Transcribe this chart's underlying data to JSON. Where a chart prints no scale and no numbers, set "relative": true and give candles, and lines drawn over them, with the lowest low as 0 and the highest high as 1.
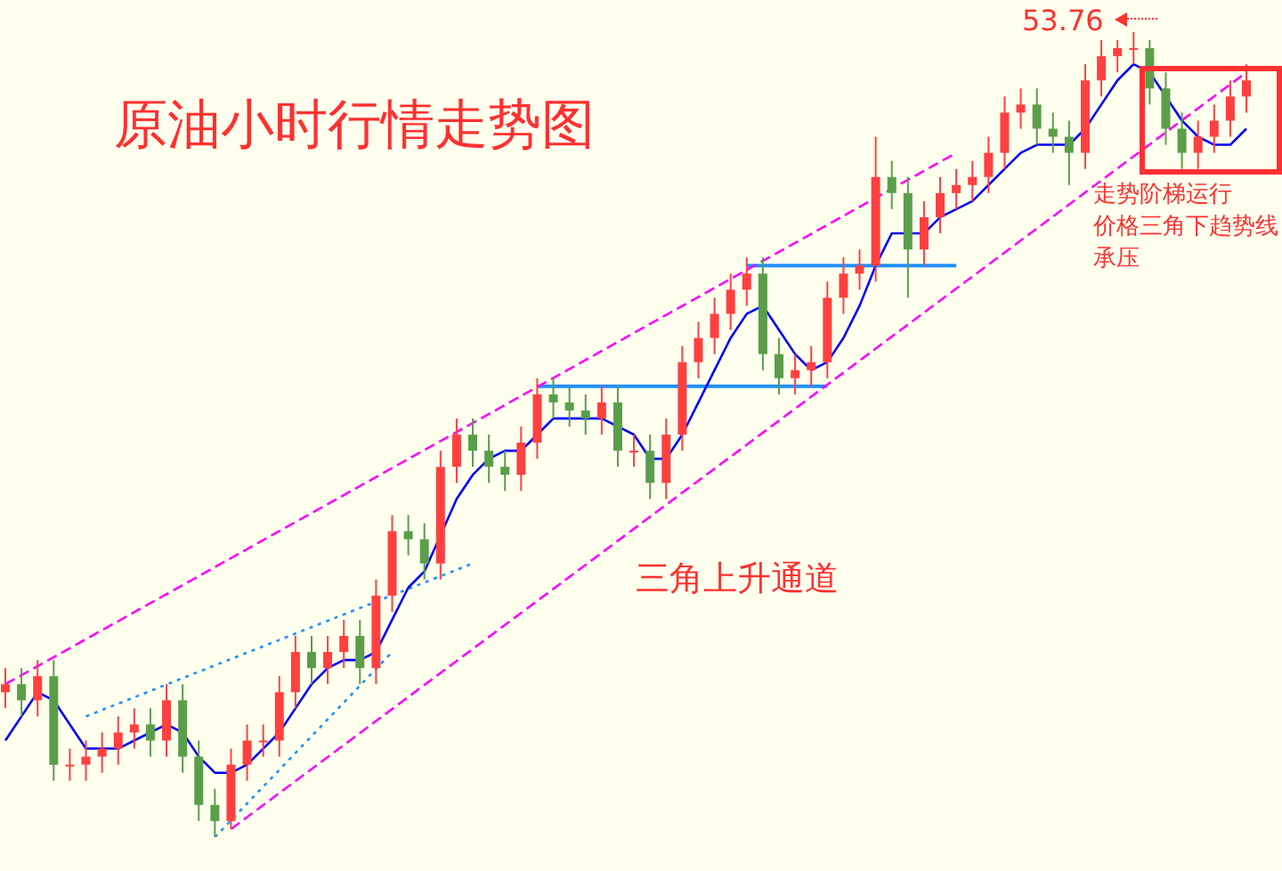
{
  "chart_data": {
    "type": "candlestick",
    "title": "原油小时行情走势图",
    "annotations": [
      "53.76",
      "走势阶梯运行",
      "价格三角下趋势线",
      "承压",
      "三角上升通道"
    ],
    "relative": true,
    "marker": "none",
    "categories": [
      null,
      null,
      null,
      null,
      null,
      null,
      null,
      null,
      null,
      null,
      null,
      null,
      null,
      null,
      null,
      null,
      null,
      null,
      null,
      null,
      null,
      null,
      null,
      null,
      null,
      null,
      null,
      null,
      null,
      null,
      null,
      null,
      null,
      null,
      null,
      null,
      null,
      null,
      null,
      null,
      null,
      null,
      null,
      null,
      null,
      null,
      null,
      null,
      null,
      null,
      null,
      null,
      null,
      null,
      null,
      null,
      null,
      null,
      null,
      null,
      null,
      null,
      null,
      null,
      null,
      null,
      null,
      null,
      null,
      null,
      null,
      null,
      null,
      null,
      null,
      null,
      null,
      null
    ],
    "ohlc": [
      [
        0.18,
        0.21,
        0.16,
        0.19
      ],
      [
        0.19,
        0.21,
        0.15,
        0.17
      ],
      [
        0.17,
        0.22,
        0.15,
        0.2
      ],
      [
        0.2,
        0.22,
        0.07,
        0.09
      ],
      [
        0.09,
        0.11,
        0.07,
        0.09
      ],
      [
        0.09,
        0.12,
        0.07,
        0.1
      ],
      [
        0.1,
        0.13,
        0.08,
        0.11
      ],
      [
        0.11,
        0.15,
        0.09,
        0.13
      ],
      [
        0.13,
        0.16,
        0.11,
        0.14
      ],
      [
        0.14,
        0.16,
        0.1,
        0.12
      ],
      [
        0.12,
        0.19,
        0.1,
        0.17
      ],
      [
        0.17,
        0.19,
        0.08,
        0.1
      ],
      [
        0.1,
        0.12,
        0.02,
        0.04
      ],
      [
        0.04,
        0.06,
        0,
        0.02
      ],
      [
        0.02,
        0.11,
        0.01,
        0.09
      ],
      [
        0.09,
        0.14,
        0.07,
        0.12
      ],
      [
        0.12,
        0.14,
        0.1,
        0.12
      ],
      [
        0.12,
        0.2,
        0.1,
        0.18
      ],
      [
        0.18,
        0.25,
        0.16,
        0.23
      ],
      [
        0.23,
        0.25,
        0.19,
        0.21
      ],
      [
        0.21,
        0.25,
        0.19,
        0.23
      ],
      [
        0.23,
        0.27,
        0.21,
        0.25
      ],
      [
        0.25,
        0.27,
        0.19,
        0.21
      ],
      [
        0.21,
        0.32,
        0.19,
        0.3
      ],
      [
        0.3,
        0.4,
        0.28,
        0.38
      ],
      [
        0.38,
        0.4,
        0.35,
        0.37
      ],
      [
        0.37,
        0.39,
        0.32,
        0.34
      ],
      [
        0.34,
        0.48,
        0.32,
        0.46
      ],
      [
        0.46,
        0.52,
        0.44,
        0.5
      ],
      [
        0.5,
        0.52,
        0.46,
        0.48
      ],
      [
        0.48,
        0.5,
        0.44,
        0.46
      ],
      [
        0.46,
        0.48,
        0.43,
        0.45
      ],
      [
        0.45,
        0.51,
        0.43,
        0.49
      ],
      [
        0.49,
        0.57,
        0.47,
        0.55
      ],
      [
        0.55,
        0.57,
        0.52,
        0.54
      ],
      [
        0.54,
        0.56,
        0.51,
        0.53
      ],
      [
        0.53,
        0.55,
        0.5,
        0.52
      ],
      [
        0.52,
        0.56,
        0.5,
        0.54
      ],
      [
        0.54,
        0.56,
        0.46,
        0.48
      ],
      [
        0.48,
        0.5,
        0.46,
        0.48
      ],
      [
        0.48,
        0.5,
        0.42,
        0.44
      ],
      [
        0.44,
        0.52,
        0.42,
        0.5
      ],
      [
        0.5,
        0.61,
        0.48,
        0.59
      ],
      [
        0.59,
        0.64,
        0.57,
        0.62
      ],
      [
        0.62,
        0.67,
        0.6,
        0.65
      ],
      [
        0.65,
        0.7,
        0.63,
        0.68
      ],
      [
        0.68,
        0.72,
        0.66,
        0.7
      ],
      [
        0.7,
        0.72,
        0.58,
        0.6
      ],
      [
        0.6,
        0.62,
        0.55,
        0.57
      ],
      [
        0.57,
        0.6,
        0.55,
        0.58
      ],
      [
        0.58,
        0.61,
        0.56,
        0.59
      ],
      [
        0.59,
        0.69,
        0.57,
        0.67
      ],
      [
        0.67,
        0.72,
        0.65,
        0.7
      ],
      [
        0.7,
        0.73,
        0.68,
        0.71
      ],
      [
        0.71,
        0.87,
        0.69,
        0.82
      ],
      [
        0.82,
        0.84,
        0.78,
        0.8
      ],
      [
        0.8,
        0.82,
        0.67,
        0.73
      ],
      [
        0.73,
        0.79,
        0.71,
        0.77
      ],
      [
        0.77,
        0.82,
        0.75,
        0.8
      ],
      [
        0.8,
        0.83,
        0.78,
        0.81
      ],
      [
        0.81,
        0.84,
        0.79,
        0.82
      ],
      [
        0.82,
        0.87,
        0.8,
        0.85
      ],
      [
        0.85,
        0.92,
        0.83,
        0.9
      ],
      [
        0.9,
        0.93,
        0.88,
        0.91
      ],
      [
        0.91,
        0.93,
        0.86,
        0.88
      ],
      [
        0.88,
        0.9,
        0.85,
        0.87
      ],
      [
        0.87,
        0.89,
        0.81,
        0.85
      ],
      [
        0.85,
        0.96,
        0.83,
        0.94
      ],
      [
        0.94,
        0.99,
        0.92,
        0.97
      ],
      [
        0.97,
        0.99,
        0.95,
        0.98
      ],
      [
        0.98,
        1,
        0.96,
        0.98
      ],
      [
        0.98,
        0.99,
        0.91,
        0.93
      ],
      [
        0.93,
        0.95,
        0.86,
        0.88
      ],
      [
        0.88,
        0.9,
        0.83,
        0.85
      ],
      [
        0.85,
        0.89,
        0.83,
        0.87
      ],
      [
        0.87,
        0.91,
        0.85,
        0.89
      ],
      [
        0.89,
        0.94,
        0.87,
        0.92
      ],
      [
        0.92,
        0.96,
        0.9,
        0.94
      ]
    ],
    "series": [
      {
        "type": "line",
        "color": "#0000ff",
        "line_style": "solid",
        "values": [
          0.12,
          0.15,
          0.18,
          0.17,
          0.14,
          0.11,
          0.11,
          0.11,
          0.12,
          0.13,
          0.14,
          0.13,
          0.1,
          0.08,
          0.08,
          0.09,
          0.11,
          0.13,
          0.16,
          0.19,
          0.21,
          0.22,
          0.22,
          0.23,
          0.27,
          0.31,
          0.33,
          null,
          0.42,
          0.45,
          0.47,
          0.48,
          0.48,
          0.5,
          0.52,
          0.52,
          0.52,
          0.52,
          0.51,
          0.5,
          0.47,
          0.47,
          0.5,
          0.54,
          0.58,
          0.62,
          0.65,
          0.66,
          0.63,
          0.6,
          0.58,
          0.59,
          0.62,
          0.66,
          0.71,
          0.75,
          0.75,
          0.75,
          0.77,
          0.78,
          0.79,
          0.81,
          0.83,
          0.85,
          0.86,
          0.86,
          0.86,
          0.88,
          0.91,
          0.94,
          0.96,
          0.95,
          0.92,
          0.89,
          0.87,
          0.86,
          0.86,
          0.88
        ]
      },
      {
        "type": "line",
        "color": "#ff00ff",
        "line_style": "dashed",
        "values": [
          0.19,
          null,
          null,
          null,
          null,
          null,
          null,
          null,
          null,
          null,
          null,
          null,
          null,
          null,
          null,
          null,
          null,
          null,
          null,
          null,
          null,
          null,
          null,
          null,
          null,
          null,
          null,
          null,
          null,
          null,
          null,
          null,
          null,
          null,
          null,
          null,
          null,
          null,
          null,
          null,
          null,
          null,
          null,
          null,
          null,
          null,
          null,
          null,
          null,
          null,
          null,
          null,
          null,
          null,
          null,
          null,
          null,
          null,
          null,
          0.85,
          null,
          null,
          null,
          null,
          null,
          null,
          null,
          null,
          null,
          null,
          null,
          null,
          null,
          null,
          null,
          null,
          null,
          null
        ]
      },
      {
        "type": "line",
        "color": "#ff00ff",
        "line_style": "dashed",
        "values": [
          null,
          null,
          null,
          null,
          null,
          null,
          null,
          null,
          null,
          null,
          null,
          null,
          null,
          null,
          0.01,
          null,
          null,
          null,
          null,
          null,
          null,
          null,
          null,
          null,
          null,
          null,
          null,
          null,
          null,
          null,
          null,
          null,
          null,
          null,
          null,
          null,
          null,
          null,
          null,
          null,
          null,
          null,
          null,
          null,
          null,
          null,
          null,
          null,
          null,
          null,
          null,
          null,
          null,
          null,
          null,
          null,
          null,
          null,
          null,
          null,
          null,
          null,
          null,
          null,
          null,
          null,
          null,
          null,
          null,
          null,
          null,
          null,
          null,
          null,
          null,
          null,
          null,
          0.95
        ]
      },
      {
        "type": "line",
        "color": "#1e90ff",
        "line_style": "dotted",
        "values": [
          null,
          null,
          null,
          null,
          null,
          0.15,
          null,
          null,
          null,
          null,
          null,
          null,
          null,
          null,
          null,
          null,
          null,
          null,
          null,
          null,
          null,
          null,
          null,
          null,
          null,
          null,
          null,
          null,
          null,
          0.34,
          null,
          null,
          null,
          null,
          null,
          null,
          null,
          null,
          null,
          null,
          null,
          null,
          null,
          null,
          null,
          null,
          null,
          null,
          null,
          null,
          null,
          null,
          null,
          null,
          null,
          null,
          null,
          null,
          null,
          null,
          null,
          null,
          null,
          null,
          null,
          null,
          null,
          null,
          null,
          null,
          null,
          null,
          null,
          null,
          null,
          null,
          null,
          null
        ]
      },
      {
        "type": "line",
        "color": "#1e90ff",
        "line_style": "dotted",
        "values": [
          null,
          null,
          null,
          null,
          null,
          null,
          null,
          null,
          null,
          null,
          null,
          null,
          null,
          0.0,
          null,
          null,
          null,
          null,
          null,
          null,
          null,
          null,
          null,
          null,
          0.23,
          null,
          null,
          null,
          null,
          null,
          null,
          null,
          null,
          null,
          null,
          null,
          null,
          null,
          null,
          null,
          null,
          null,
          null,
          null,
          null,
          null,
          null,
          null,
          null,
          null,
          null,
          null,
          null,
          null,
          null,
          null,
          null,
          null,
          null,
          null,
          null,
          null,
          null,
          null,
          null,
          null,
          null,
          null,
          null,
          null,
          null,
          null,
          null,
          null,
          null,
          null,
          null,
          null
        ]
      },
      {
        "type": "line",
        "color": "#1e90ff",
        "line_style": "solid",
        "values": [
          null,
          null,
          null,
          null,
          null,
          null,
          null,
          null,
          null,
          null,
          null,
          null,
          null,
          null,
          null,
          null,
          null,
          null,
          null,
          null,
          null,
          null,
          null,
          null,
          null,
          null,
          null,
          null,
          null,
          null,
          null,
          null,
          null,
          0.56,
          null,
          null,
          null,
          null,
          null,
          null,
          null,
          null,
          null,
          null,
          null,
          null,
          null,
          null,
          null,
          null,
          null,
          0.56,
          null,
          null,
          null,
          null,
          null,
          null,
          null,
          null,
          null,
          null,
          null,
          null,
          null,
          null,
          null,
          null,
          null,
          null,
          null,
          null,
          null,
          null,
          null,
          null,
          null,
          null
        ]
      },
      {
        "type": "line",
        "color": "#1e90ff",
        "line_style": "solid",
        "values": [
          null,
          null,
          null,
          null,
          null,
          null,
          null,
          null,
          null,
          null,
          null,
          null,
          null,
          null,
          null,
          null,
          null,
          null,
          null,
          null,
          null,
          null,
          null,
          null,
          null,
          null,
          null,
          null,
          null,
          null,
          null,
          null,
          null,
          null,
          null,
          null,
          null,
          null,
          null,
          null,
          null,
          null,
          null,
          null,
          null,
          null,
          0.71,
          null,
          null,
          null,
          null,
          null,
          null,
          null,
          null,
          null,
          null,
          null,
          null,
          0.71,
          null,
          null,
          null,
          null,
          null,
          null,
          null,
          null,
          null,
          null,
          null,
          null,
          null,
          null,
          null,
          null,
          null,
          null
        ]
      }
    ]
  }
}
